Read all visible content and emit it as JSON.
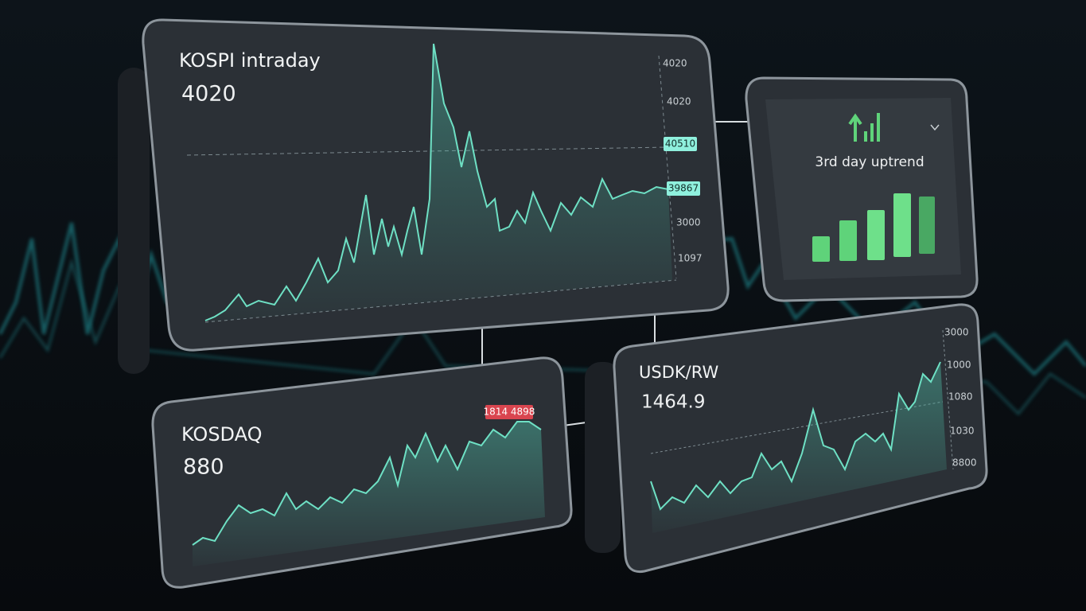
{
  "panels": [
    {
      "title": "KOSPI intraday",
      "value": "4020",
      "axis_labels": [
        "4020",
        "4020",
        "3000",
        "1097"
      ],
      "badges": [
        "40510",
        "39867"
      ]
    },
    {
      "title": "3rd day uptrend"
    },
    {
      "title": "KOSDAQ",
      "value": "880",
      "badges": [
        "1814 4898"
      ]
    },
    {
      "title": "USDK/RW",
      "value": "1464.9",
      "axis_labels": [
        "3000",
        "1000",
        "1080",
        "1030",
        "8800"
      ]
    }
  ]
}
